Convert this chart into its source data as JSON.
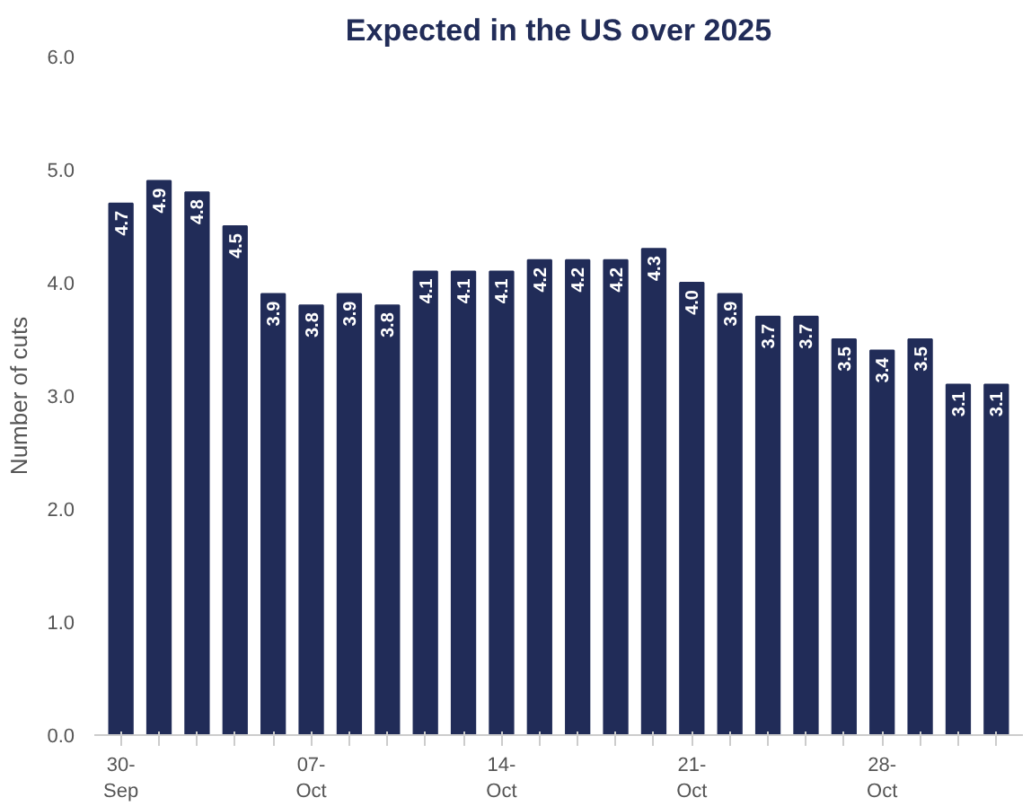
{
  "chart_data": {
    "type": "bar",
    "title": "Expected in the US over 2025",
    "ylabel": "Number of cuts",
    "categories": [
      "30-\nSep",
      null,
      null,
      null,
      null,
      "07-\nOct",
      null,
      null,
      null,
      null,
      "14-\nOct",
      null,
      null,
      null,
      null,
      "21-\nOct",
      null,
      null,
      null,
      null,
      "28-\nOct",
      null,
      null,
      null
    ],
    "values": [
      4.7,
      4.9,
      4.8,
      4.5,
      3.9,
      3.8,
      3.9,
      3.8,
      4.1,
      4.1,
      4.1,
      4.2,
      4.2,
      4.2,
      4.3,
      4.0,
      3.9,
      3.7,
      3.7,
      3.5,
      3.4,
      3.5,
      3.1,
      3.1
    ],
    "color": "#212c58",
    "value_labels": [
      "4.7",
      "4.9",
      "4.8",
      "4.5",
      "3.9",
      "3.8",
      "3.9",
      "3.8",
      "4.1",
      "4.1",
      "4.1",
      "4.2",
      "4.2",
      "4.2",
      "4.3",
      "4.0",
      "3.9",
      "3.7",
      "3.7",
      "3.5",
      "3.4",
      "3.5",
      "3.1",
      "3.1"
    ],
    "ylim": [
      0,
      6
    ],
    "yticks": [
      {
        "value": 0,
        "label": "0.0"
      },
      {
        "value": 1,
        "label": "1.0"
      },
      {
        "value": 2,
        "label": "2.0"
      },
      {
        "value": 3,
        "label": "3.0"
      },
      {
        "value": 4,
        "label": "4.0"
      },
      {
        "value": 5,
        "label": "5.0"
      },
      {
        "value": 6,
        "label": "6.0"
      }
    ],
    "grid": false
  }
}
